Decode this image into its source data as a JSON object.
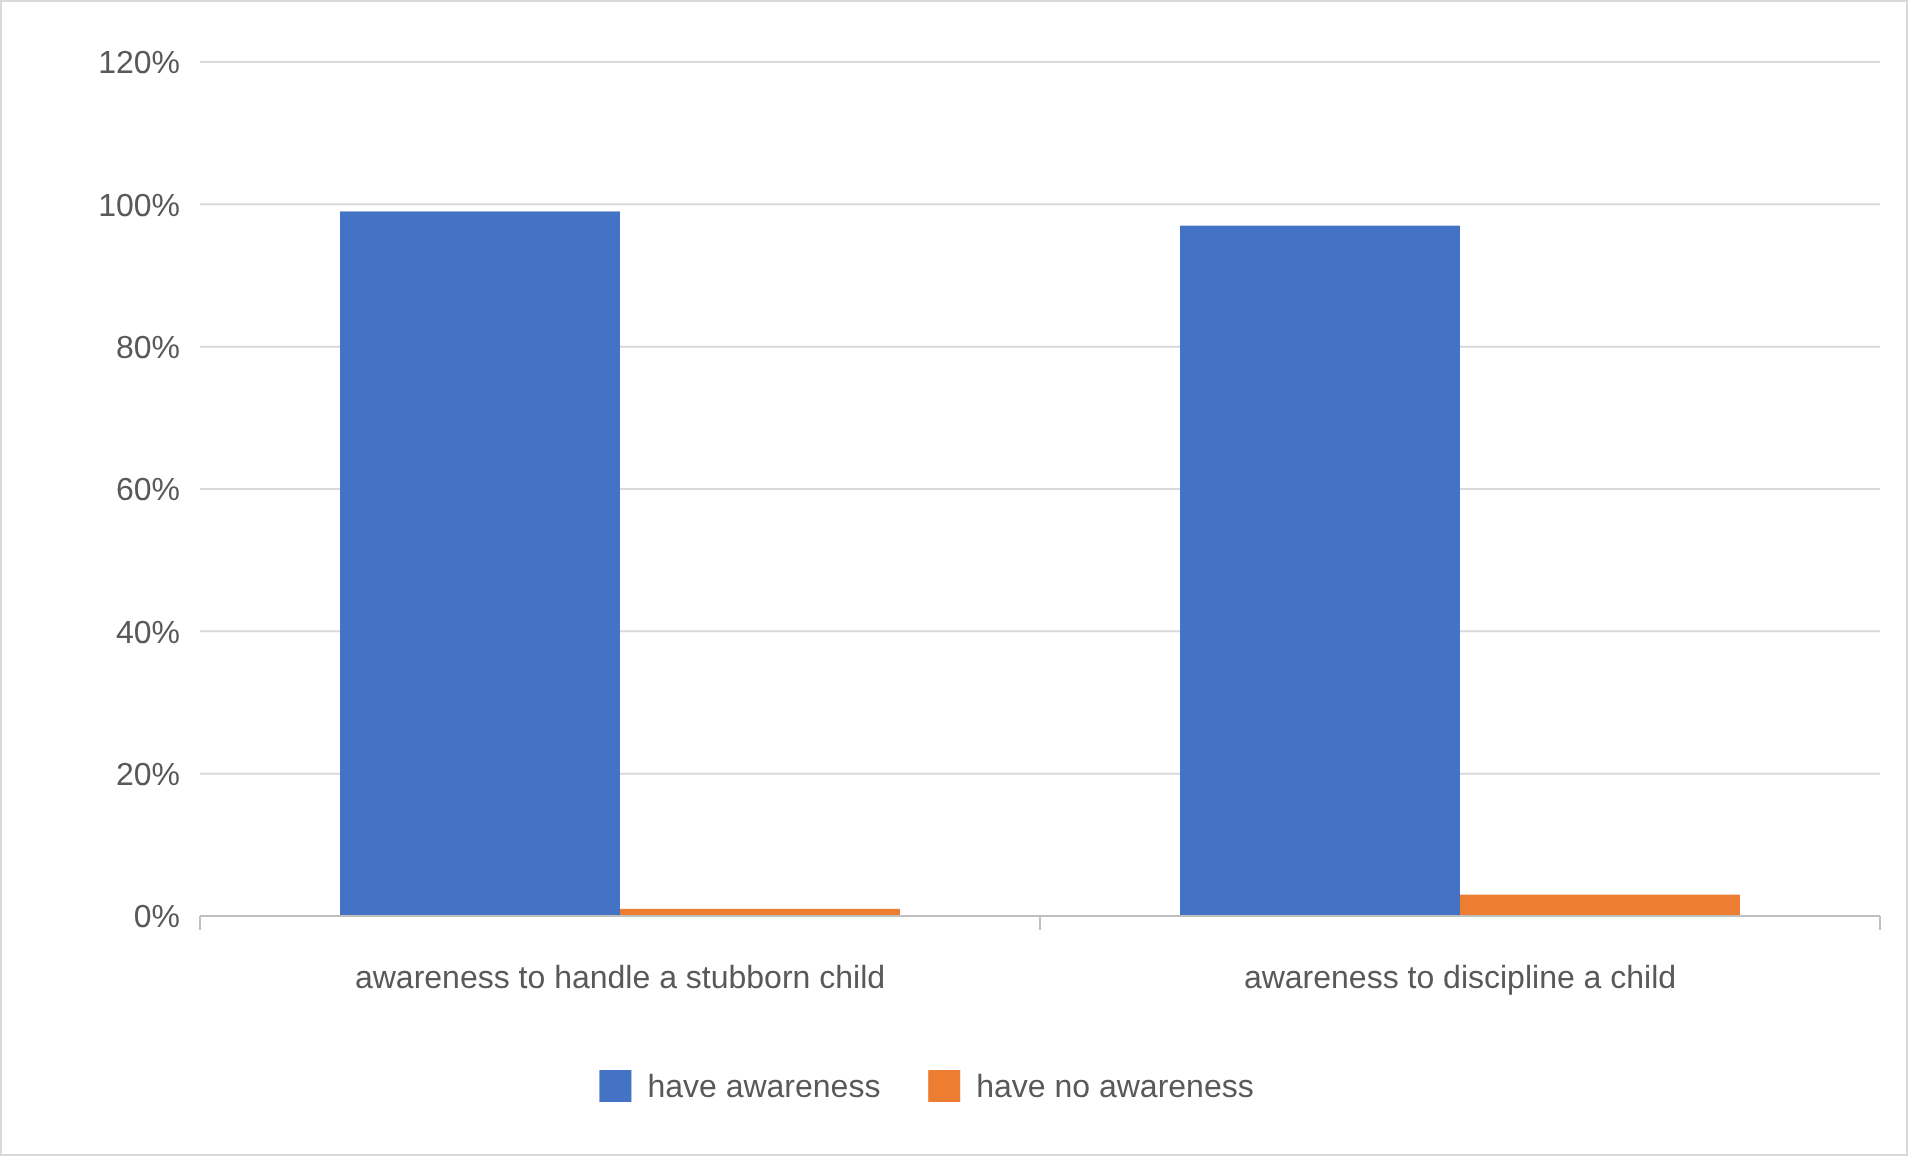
{
  "chart_data": {
    "type": "bar",
    "categories": [
      "awareness to handle a stubborn child",
      "awareness to discipline a child"
    ],
    "series": [
      {
        "name": "have awareness",
        "color": "#4472c4",
        "values": [
          99,
          97
        ]
      },
      {
        "name": "have no awareness",
        "color": "#ed7d31",
        "values": [
          1,
          3
        ]
      }
    ],
    "ylim": [
      0,
      120
    ],
    "yticks": [
      {
        "value": 0,
        "label": "0%"
      },
      {
        "value": 20,
        "label": "20%"
      },
      {
        "value": 40,
        "label": "40%"
      },
      {
        "value": 60,
        "label": "60%"
      },
      {
        "value": 80,
        "label": "80%"
      },
      {
        "value": 100,
        "label": "100%"
      },
      {
        "value": 120,
        "label": "120%"
      }
    ],
    "grid": "y",
    "legend": "bottom"
  }
}
